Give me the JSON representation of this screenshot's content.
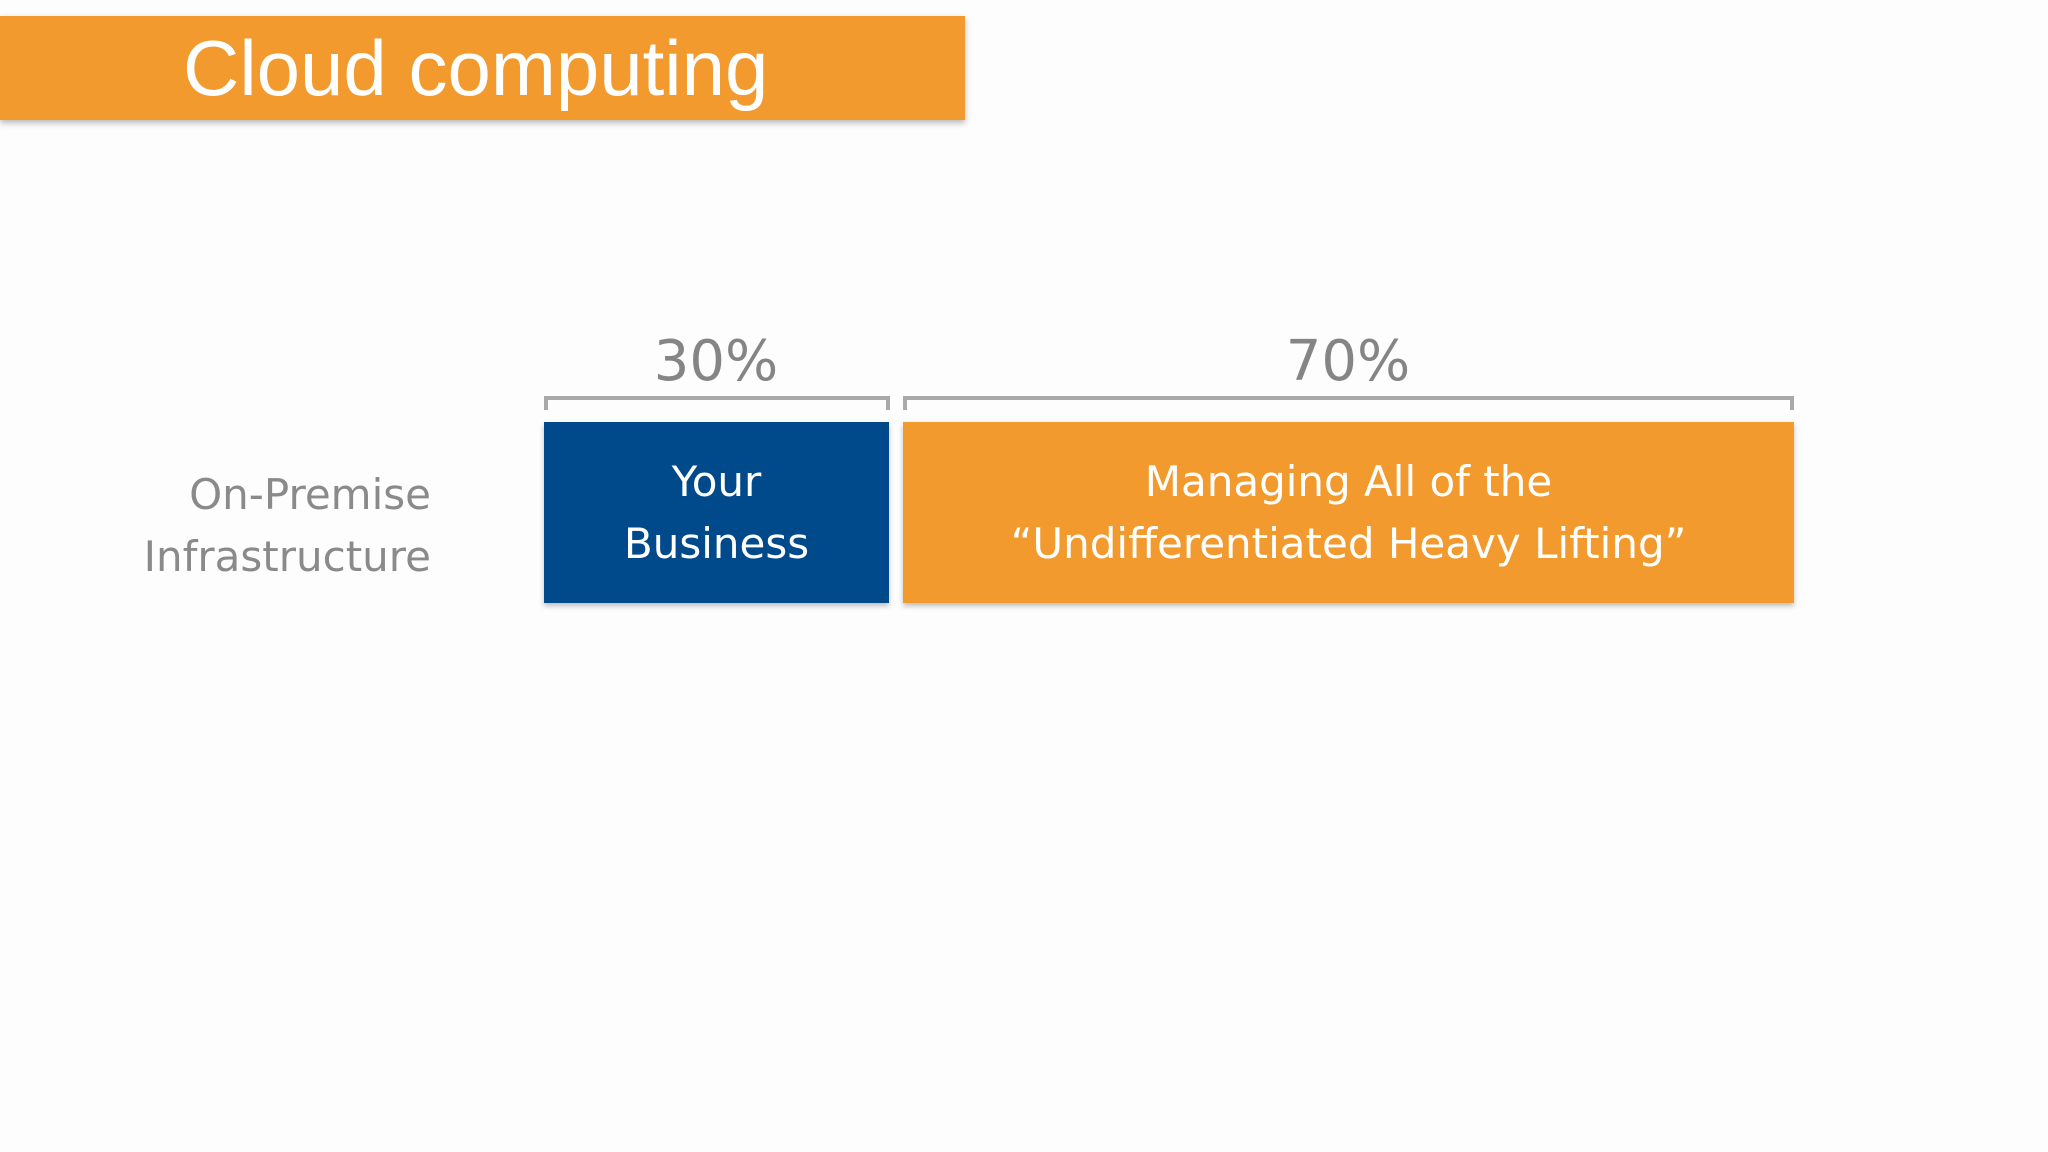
{
  "slide": {
    "title": "Cloud computing"
  },
  "row": {
    "label_line1": "On-Premise",
    "label_line2": "Infrastructure"
  },
  "segments": [
    {
      "percent": "30%",
      "value": 30,
      "line1": "Your",
      "line2": "Business",
      "color": "#004a8c"
    },
    {
      "percent": "70%",
      "value": 70,
      "line1": "Managing All of the",
      "line2": "“Undifferentiated Heavy Lifting”",
      "color": "#f29a2e"
    }
  ],
  "colors": {
    "accent": "#f29a2e",
    "business_blue": "#004a8c",
    "label_gray": "#8a8a8a"
  }
}
